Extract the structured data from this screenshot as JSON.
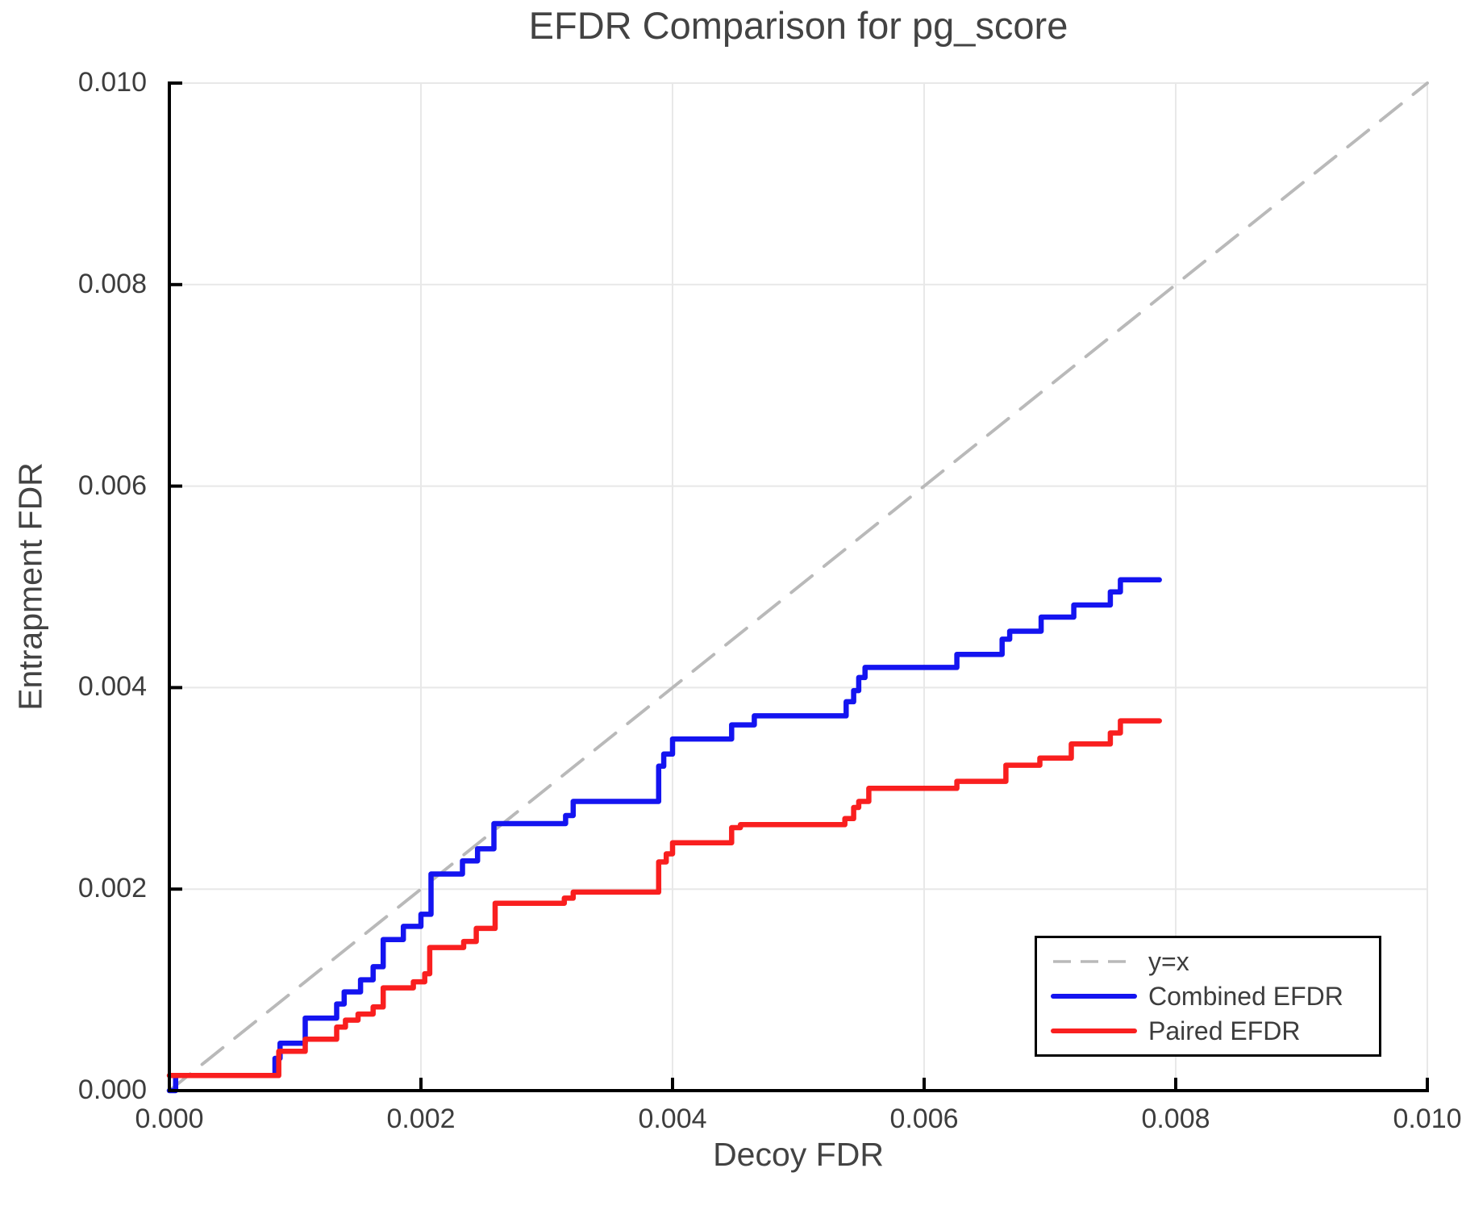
{
  "title": "EFDR Comparison for pg_score",
  "axes": {
    "x_label": "Decoy FDR",
    "y_label": "Entrapment FDR",
    "tick_values": [
      0,
      0.002,
      0.004,
      0.006,
      0.008,
      0.01
    ],
    "x_tick_labels": [
      "0.000",
      "0.002",
      "0.004",
      "0.006",
      "0.008",
      "0.010"
    ],
    "y_tick_labels": [
      "0.000",
      "0.002",
      "0.004",
      "0.006",
      "0.008",
      "0.010"
    ]
  },
  "colors": {
    "identity": "#b9b9b9",
    "combined": "#1414f0",
    "paired": "#f91f1f",
    "grid": "#e8e8e8",
    "spine": "#000000",
    "text": "#3d3d3d"
  },
  "legend": {
    "position": "lower right"
  },
  "chart_data": {
    "type": "line",
    "title": "EFDR Comparison for pg_score",
    "xlabel": "Decoy FDR",
    "ylabel": "Entrapment FDR",
    "xlim": [
      0,
      0.01
    ],
    "ylim": [
      0,
      0.01
    ],
    "grid": true,
    "legend_position": "lower right",
    "series": [
      {
        "name": "y=x",
        "style": "dashed",
        "color": "#b9b9b9",
        "points": [
          [
            0,
            0
          ],
          [
            0.01,
            0.01
          ]
        ]
      },
      {
        "name": "Combined EFDR",
        "style": "solid",
        "color": "#1414f0",
        "points": [
          [
            0,
            0
          ],
          [
            5e-05,
            0
          ],
          [
            5e-05,
            0.00015
          ],
          [
            0.00084,
            0.00015
          ],
          [
            0.00084,
            0.00032
          ],
          [
            0.00088,
            0.00032
          ],
          [
            0.00088,
            0.00047
          ],
          [
            0.00108,
            0.00047
          ],
          [
            0.00108,
            0.00072
          ],
          [
            0.00133,
            0.00072
          ],
          [
            0.00133,
            0.00086
          ],
          [
            0.00139,
            0.00086
          ],
          [
            0.00139,
            0.00098
          ],
          [
            0.00152,
            0.00098
          ],
          [
            0.00152,
            0.0011
          ],
          [
            0.00162,
            0.0011
          ],
          [
            0.00162,
            0.00123
          ],
          [
            0.0017,
            0.00123
          ],
          [
            0.0017,
            0.0015
          ],
          [
            0.00186,
            0.0015
          ],
          [
            0.00186,
            0.00163
          ],
          [
            0.002,
            0.00163
          ],
          [
            0.002,
            0.00175
          ],
          [
            0.00208,
            0.00175
          ],
          [
            0.00208,
            0.00215
          ],
          [
            0.00233,
            0.00215
          ],
          [
            0.00233,
            0.00228
          ],
          [
            0.00245,
            0.00228
          ],
          [
            0.00245,
            0.0024
          ],
          [
            0.00258,
            0.0024
          ],
          [
            0.00258,
            0.00265
          ],
          [
            0.00315,
            0.00265
          ],
          [
            0.00315,
            0.00273
          ],
          [
            0.00321,
            0.00273
          ],
          [
            0.00321,
            0.00287
          ],
          [
            0.00389,
            0.00287
          ],
          [
            0.00389,
            0.00322
          ],
          [
            0.00393,
            0.00322
          ],
          [
            0.00393,
            0.00334
          ],
          [
            0.004,
            0.00334
          ],
          [
            0.004,
            0.00349
          ],
          [
            0.00447,
            0.00349
          ],
          [
            0.00447,
            0.00363
          ],
          [
            0.00465,
            0.00363
          ],
          [
            0.00465,
            0.00372
          ],
          [
            0.00538,
            0.00372
          ],
          [
            0.00538,
            0.00386
          ],
          [
            0.00544,
            0.00386
          ],
          [
            0.00544,
            0.00397
          ],
          [
            0.00548,
            0.00397
          ],
          [
            0.00548,
            0.0041
          ],
          [
            0.00553,
            0.0041
          ],
          [
            0.00553,
            0.0042
          ],
          [
            0.00626,
            0.0042
          ],
          [
            0.00626,
            0.00433
          ],
          [
            0.00662,
            0.00433
          ],
          [
            0.00662,
            0.00448
          ],
          [
            0.00668,
            0.00448
          ],
          [
            0.00668,
            0.00456
          ],
          [
            0.00693,
            0.00456
          ],
          [
            0.00693,
            0.0047
          ],
          [
            0.00719,
            0.0047
          ],
          [
            0.00719,
            0.00482
          ],
          [
            0.00748,
            0.00482
          ],
          [
            0.00748,
            0.00495
          ],
          [
            0.00756,
            0.00495
          ],
          [
            0.00756,
            0.00507
          ],
          [
            0.00787,
            0.00507
          ]
        ]
      },
      {
        "name": "Paired EFDR",
        "style": "solid",
        "color": "#f91f1f",
        "points": [
          [
            0,
            0.00015
          ],
          [
            0.00087,
            0.00015
          ],
          [
            0.00087,
            0.00039
          ],
          [
            0.00108,
            0.00039
          ],
          [
            0.00108,
            0.00051
          ],
          [
            0.00133,
            0.00051
          ],
          [
            0.00133,
            0.00063
          ],
          [
            0.0014,
            0.00063
          ],
          [
            0.0014,
            0.0007
          ],
          [
            0.0015,
            0.0007
          ],
          [
            0.0015,
            0.00076
          ],
          [
            0.00162,
            0.00076
          ],
          [
            0.00162,
            0.00083
          ],
          [
            0.0017,
            0.00083
          ],
          [
            0.0017,
            0.00102
          ],
          [
            0.00194,
            0.00102
          ],
          [
            0.00194,
            0.00108
          ],
          [
            0.00203,
            0.00108
          ],
          [
            0.00203,
            0.00116
          ],
          [
            0.00207,
            0.00116
          ],
          [
            0.00207,
            0.00142
          ],
          [
            0.00234,
            0.00142
          ],
          [
            0.00234,
            0.00148
          ],
          [
            0.00244,
            0.00148
          ],
          [
            0.00244,
            0.00161
          ],
          [
            0.00259,
            0.00161
          ],
          [
            0.00259,
            0.00186
          ],
          [
            0.00314,
            0.00186
          ],
          [
            0.00314,
            0.00191
          ],
          [
            0.00321,
            0.00191
          ],
          [
            0.00321,
            0.00197
          ],
          [
            0.00389,
            0.00197
          ],
          [
            0.00389,
            0.00227
          ],
          [
            0.00395,
            0.00227
          ],
          [
            0.00395,
            0.00235
          ],
          [
            0.004,
            0.00235
          ],
          [
            0.004,
            0.00246
          ],
          [
            0.00447,
            0.00246
          ],
          [
            0.00447,
            0.00261
          ],
          [
            0.00454,
            0.00261
          ],
          [
            0.00454,
            0.00264
          ],
          [
            0.00537,
            0.00264
          ],
          [
            0.00537,
            0.0027
          ],
          [
            0.00544,
            0.0027
          ],
          [
            0.00544,
            0.00281
          ],
          [
            0.00548,
            0.00281
          ],
          [
            0.00548,
            0.00287
          ],
          [
            0.00556,
            0.00287
          ],
          [
            0.00556,
            0.003
          ],
          [
            0.00626,
            0.003
          ],
          [
            0.00626,
            0.00307
          ],
          [
            0.00665,
            0.00307
          ],
          [
            0.00665,
            0.00323
          ],
          [
            0.00692,
            0.00323
          ],
          [
            0.00692,
            0.0033
          ],
          [
            0.00717,
            0.0033
          ],
          [
            0.00717,
            0.00344
          ],
          [
            0.00748,
            0.00344
          ],
          [
            0.00748,
            0.00355
          ],
          [
            0.00756,
            0.00355
          ],
          [
            0.00756,
            0.00367
          ],
          [
            0.00787,
            0.00367
          ]
        ]
      }
    ]
  }
}
